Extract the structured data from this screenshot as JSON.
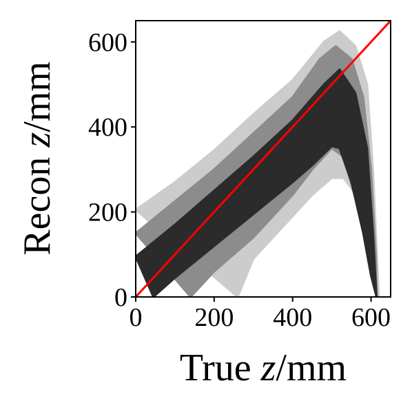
{
  "chart_data": {
    "type": "heatmap",
    "title": "",
    "xlabel": {
      "prefix": "True ",
      "var": "z",
      "suffix": "/mm"
    },
    "ylabel": {
      "prefix": "Recon ",
      "var": "z",
      "suffix": "/mm"
    },
    "xlim": [
      0,
      650
    ],
    "ylim": [
      0,
      650
    ],
    "x_ticks": [
      0,
      200,
      400,
      600
    ],
    "y_ticks": [
      0,
      200,
      400,
      600
    ],
    "x_tick_labels": [
      "0",
      "200",
      "400",
      "600"
    ],
    "y_tick_labels": [
      "0",
      "200",
      "400",
      "600"
    ],
    "grid": false,
    "legend": "none",
    "density_contours": [
      {
        "level": "outer",
        "color": "#cccccc",
        "upper": [
          [
            0,
            205
          ],
          [
            100,
            270
          ],
          [
            200,
            345
          ],
          [
            300,
            430
          ],
          [
            400,
            510
          ],
          [
            480,
            600
          ],
          [
            520,
            625
          ],
          [
            560,
            590
          ],
          [
            590,
            500
          ],
          [
            605,
            300
          ],
          [
            615,
            100
          ],
          [
            620,
            0
          ]
        ],
        "lower": [
          [
            620,
            0
          ],
          [
            600,
            120
          ],
          [
            570,
            230
          ],
          [
            530,
            280
          ],
          [
            500,
            280
          ],
          [
            450,
            240
          ],
          [
            400,
            190
          ],
          [
            350,
            140
          ],
          [
            300,
            90
          ],
          [
            260,
            0
          ]
        ]
      },
      {
        "level": "middle",
        "color": "#8c8c8c",
        "upper": [
          [
            0,
            150
          ],
          [
            100,
            225
          ],
          [
            200,
            300
          ],
          [
            300,
            385
          ],
          [
            400,
            470
          ],
          [
            470,
            560
          ],
          [
            510,
            590
          ],
          [
            550,
            560
          ],
          [
            580,
            470
          ],
          [
            600,
            300
          ],
          [
            612,
            100
          ],
          [
            615,
            0
          ]
        ],
        "lower": [
          [
            615,
            0
          ],
          [
            595,
            90
          ],
          [
            570,
            200
          ],
          [
            530,
            330
          ],
          [
            500,
            350
          ],
          [
            450,
            300
          ],
          [
            400,
            240
          ],
          [
            300,
            140
          ],
          [
            200,
            60
          ],
          [
            140,
            0
          ]
        ]
      },
      {
        "level": "inner",
        "color": "#2b2b2b",
        "upper": [
          [
            0,
            95
          ],
          [
            100,
            170
          ],
          [
            200,
            250
          ],
          [
            300,
            330
          ],
          [
            400,
            415
          ],
          [
            480,
            500
          ],
          [
            520,
            535
          ],
          [
            560,
            480
          ],
          [
            590,
            350
          ],
          [
            605,
            150
          ],
          [
            612,
            30
          ],
          [
            614,
            0
          ]
        ],
        "lower": [
          [
            614,
            0
          ],
          [
            600,
            50
          ],
          [
            580,
            150
          ],
          [
            550,
            270
          ],
          [
            520,
            350
          ],
          [
            500,
            355
          ],
          [
            450,
            310
          ],
          [
            400,
            270
          ],
          [
            300,
            195
          ],
          [
            200,
            120
          ],
          [
            100,
            45
          ],
          [
            45,
            0
          ]
        ]
      }
    ],
    "reference_line": {
      "color": "#ff0000",
      "points": [
        [
          0,
          0
        ],
        [
          650,
          650
        ]
      ]
    }
  }
}
